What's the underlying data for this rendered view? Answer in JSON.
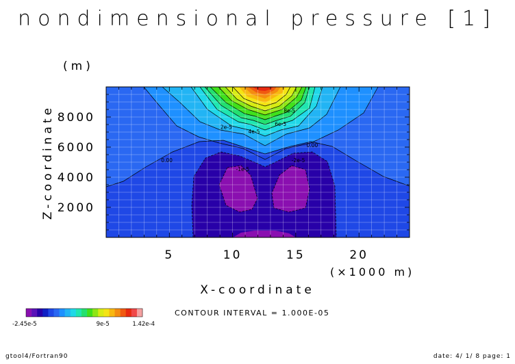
{
  "chart_data": {
    "type": "heatmap",
    "subtype": "filled-contour",
    "title": "nondimensional pressure [1]",
    "xlabel": "X-coordinate",
    "x_unit": "(×1000 m)",
    "ylabel": "Z-coordinate",
    "y_unit": "(m)",
    "xlim": [
      0,
      24
    ],
    "ylim": [
      0,
      10000
    ],
    "x_ticks": [
      5,
      10,
      15,
      20
    ],
    "y_ticks": [
      2000,
      4000,
      6000,
      8000
    ],
    "grid": true,
    "contour_interval_label": "CONTOUR INTERVAL = 1.000E-05",
    "contour_levels": [
      -2e-05,
      -1e-05,
      0,
      1e-05,
      2e-05,
      3e-05,
      4e-05,
      5e-05,
      6e-05,
      7e-05,
      8e-05,
      9e-05,
      0.0001,
      0.00011,
      0.00012,
      0.00013,
      0.00014
    ],
    "contour_labels": [
      {
        "text": "2e-5",
        "x": 9.5,
        "y": 7200
      },
      {
        "text": "4e-5",
        "x": 11.7,
        "y": 6900
      },
      {
        "text": "6e-5",
        "x": 13.8,
        "y": 7400
      },
      {
        "text": "8e-5",
        "x": 14.5,
        "y": 8300
      },
      {
        "text": "0.00",
        "x": 4.8,
        "y": 5000
      },
      {
        "text": "0.00",
        "x": 16.3,
        "y": 6000
      },
      {
        "text": "-1e-5",
        "x": 10.8,
        "y": 4400
      },
      {
        "text": "-2e-5",
        "x": 15.2,
        "y": 5000
      }
    ],
    "colorbar": {
      "min_label": "-2.45e-5",
      "tick_labels": [
        "9e-5"
      ],
      "max_label": "1.42e-4",
      "colors": [
        "#8a0fb0",
        "#5a12b8",
        "#2800a8",
        "#1020c4",
        "#1f48e6",
        "#2a68f2",
        "#1e90ff",
        "#22b4f4",
        "#20d8e8",
        "#20e6b0",
        "#24e070",
        "#40e01c",
        "#8ee616",
        "#d8ec14",
        "#f4e414",
        "#f8b810",
        "#f48c10",
        "#f05a10",
        "#e82a10",
        "#f04848",
        "#f4a0a0"
      ]
    },
    "field_colors": {
      "below_-2e-5": "#8a0fb0",
      "-2e-5_to_-1e-5": "#2800a8",
      "-1e-5_to_0": "#1f48e6",
      "0_to_1e-5": "#2a68f2",
      "1e-5_to_2e-5": "#1e90ff",
      "2e-5_to_3e-5": "#22b4f4",
      "3e-5_to_4e-5": "#20d8e8",
      "4e-5_to_5e-5": "#20e6b0",
      "5e-5_to_6e-5": "#24e070",
      "6e-5_to_7e-5": "#40e01c",
      "7e-5_to_8e-5": "#8ee616",
      "8e-5_to_9e-5": "#d8ec14",
      "9e-5_to_1e-4": "#f4e414",
      "1e-4_to_1.1e-4": "#f8b810",
      "1.1e-4_to_1.2e-4": "#f48c10",
      "1.2e-4_to_1.3e-4": "#f05a10",
      "above_1.3e-4": "#e82a10"
    }
  },
  "footer": {
    "left": "gtool4/Fortran90",
    "right": "date: 4/ 1/ 8 page: 1"
  }
}
